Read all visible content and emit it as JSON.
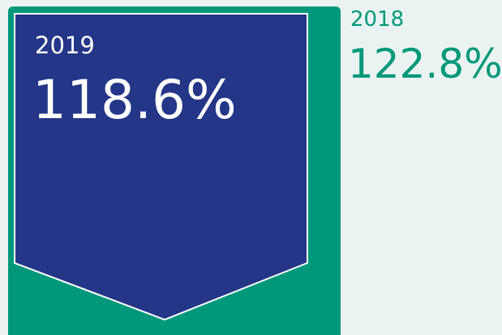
{
  "current": {
    "year": "2019",
    "value": "118.6%"
  },
  "previous": {
    "year": "2018",
    "value": "122.8%"
  }
}
